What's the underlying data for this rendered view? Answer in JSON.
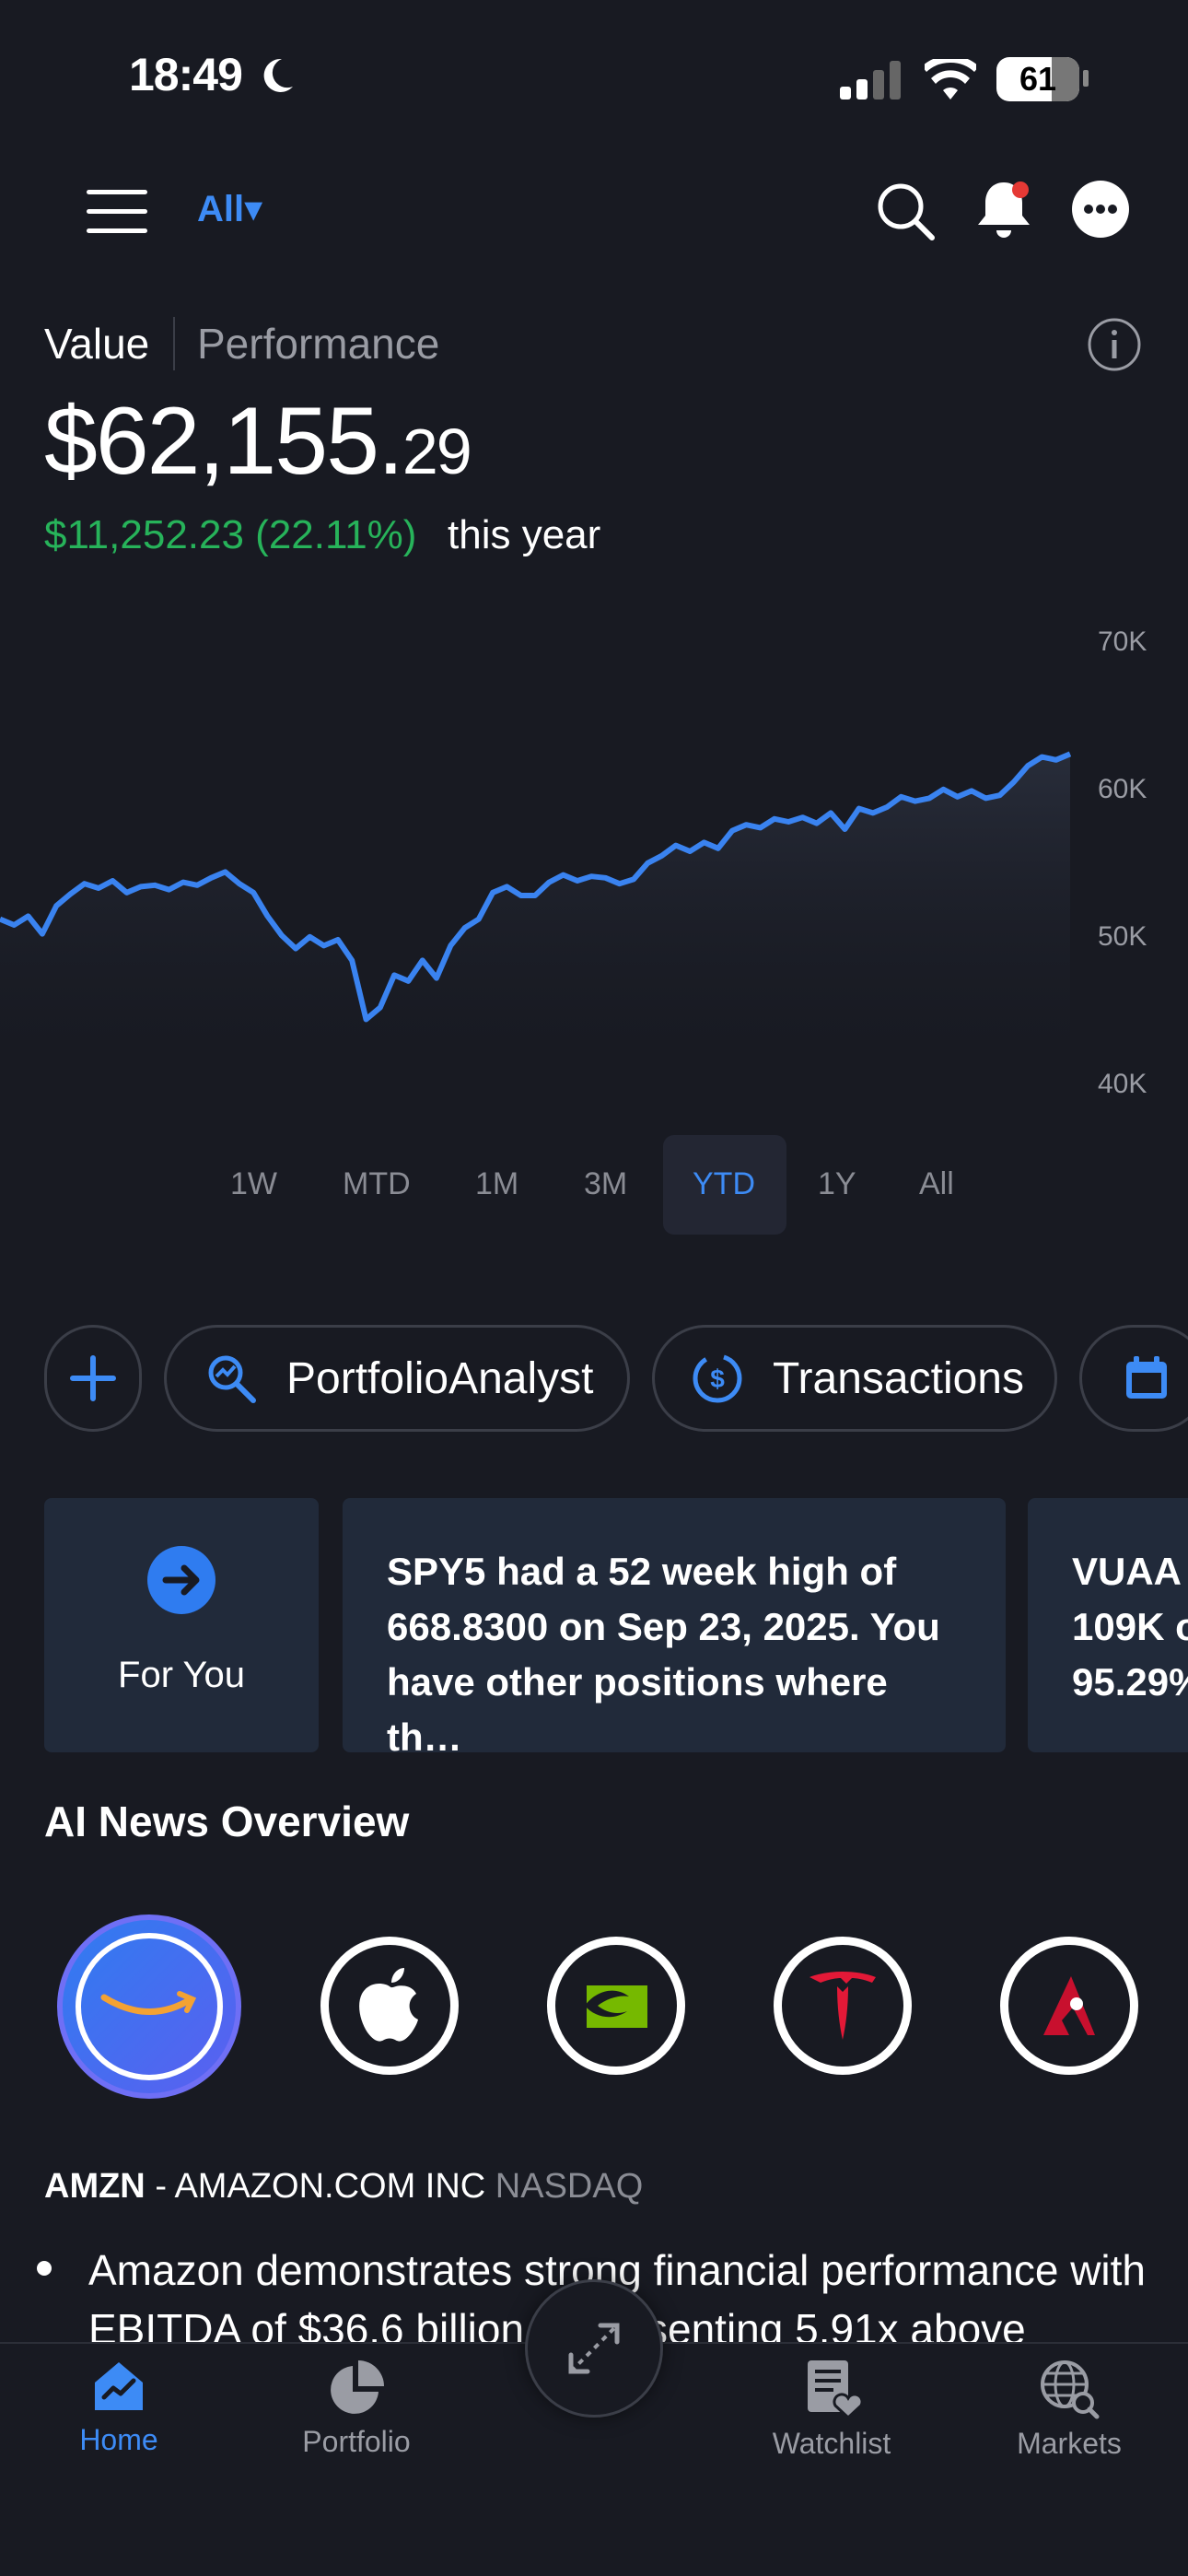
{
  "status": {
    "time": "18:49",
    "battery": "61"
  },
  "header": {
    "filter_label": "All▾"
  },
  "summary": {
    "tab_value": "Value",
    "tab_performance": "Performance",
    "value_main": "$62,155.",
    "value_cents": "29",
    "gain": "$11,252.23 (22.11%)",
    "gain_suffix": "this year"
  },
  "chart_data": {
    "type": "line",
    "y_ticks": [
      "70K",
      "60K",
      "50K",
      "40K"
    ],
    "ylim": [
      40000,
      70000
    ],
    "series": [
      {
        "values": [
          51400,
          51000,
          51600,
          50400,
          52300,
          53100,
          53800,
          53500,
          54000,
          53200,
          53600,
          53700,
          53400,
          53900,
          53700,
          54200,
          54600,
          53800,
          53200,
          51600,
          50300,
          49400,
          50200,
          49600,
          50000,
          48600,
          44600,
          45400,
          47600,
          47200,
          48600,
          47400,
          49600,
          50800,
          51400,
          53200,
          53600,
          53000,
          53000,
          53900,
          54400,
          54000,
          54300,
          54200,
          53800,
          54100,
          55200,
          55700,
          56400,
          56000,
          56600,
          56200,
          57400,
          57800,
          57600,
          58200,
          58000,
          58300,
          57900,
          58600,
          57500,
          58900,
          58600,
          59000,
          59700,
          59400,
          59600,
          60200,
          59700,
          60100,
          59600,
          59800,
          60700,
          61800,
          62400,
          62200,
          62600
        ]
      }
    ],
    "ranges": [
      "1W",
      "MTD",
      "1M",
      "3M",
      "YTD",
      "1Y",
      "All"
    ],
    "selected_range": "YTD",
    "line_color": "#3a83f0"
  },
  "actions": {
    "portfolio_analyst": "PortfolioAnalyst",
    "transactions": "Transactions"
  },
  "cards": {
    "for_you": "For You",
    "card1_text": "SPY5 had a 52 week high of 668.8300 on Sep 23, 2025. You have other positions where th…",
    "card2_lines": [
      "VUAA h",
      "109K o",
      "95.29%"
    ]
  },
  "ai_news": {
    "title": "AI News Overview",
    "logos": [
      "amazon-logo",
      "apple-logo",
      "nvidia-logo",
      "tesla-logo",
      "arista-logo"
    ],
    "ticker": "AMZN",
    "separator": " - ",
    "company": "AMAZON.COM INC",
    "exchange": "NASDAQ",
    "bullet_text": "Amazon demonstrates strong financial performance with EBITDA of $36.6 billion, representing 5.91x above"
  },
  "tabbar": {
    "home": "Home",
    "portfolio": "Portfolio",
    "watchlist": "Watchlist",
    "markets": "Markets"
  }
}
